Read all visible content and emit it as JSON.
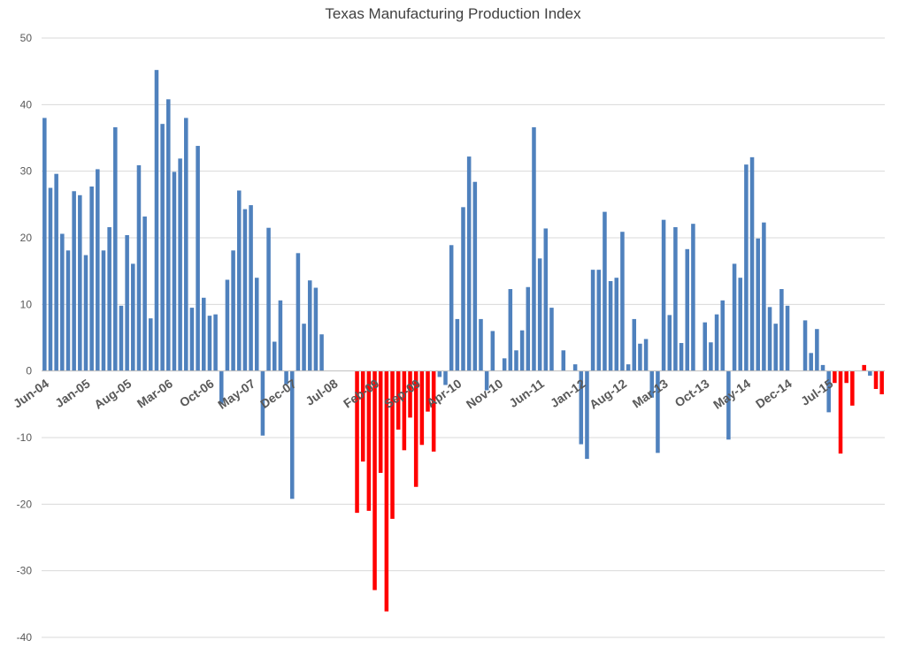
{
  "chart_data": {
    "type": "bar",
    "title": "Texas Manufacturing Production Index",
    "xlabel": "",
    "ylabel": "",
    "ylim": [
      -40,
      50
    ],
    "yticks": [
      50,
      40,
      30,
      20,
      10,
      0,
      -10,
      -20,
      -30,
      -40
    ],
    "grid": true,
    "legend": "none",
    "colors": {
      "default": "#4f81bd",
      "highlight": "#ff0000",
      "gridline": "#d9d9d9",
      "axis": "#bfbfbf"
    },
    "x_tick_labels": [
      "Jun-04",
      "Jan-05",
      "Aug-05",
      "Mar-06",
      "Oct-06",
      "May-07",
      "Dec-07",
      "Jul-08",
      "Feb-09",
      "Sep-09",
      "Apr-10",
      "Nov-10",
      "Jun-11",
      "Jan-12",
      "Aug-12",
      "Mar-13",
      "Oct-13",
      "May-14",
      "Dec-14",
      "Jul-15"
    ],
    "x_tick_every": 7,
    "values": [
      38,
      27.5,
      29.6,
      20.6,
      18.1,
      27.0,
      26.4,
      17.4,
      27.7,
      30.3,
      18.1,
      21.6,
      36.6,
      9.8,
      20.4,
      16.1,
      30.9,
      23.2,
      7.9,
      45.2,
      37.1,
      40.8,
      29.9,
      31.9,
      38.0,
      9.5,
      33.8,
      11.0,
      8.3,
      8.5,
      -5.0,
      13.7,
      18.1,
      27.1,
      24.3,
      24.9,
      14.0,
      -9.7,
      21.5,
      4.4,
      10.6,
      -2.0,
      -19.2,
      17.7,
      7.1,
      13.6,
      12.5,
      5.5,
      0,
      0,
      0,
      0,
      0,
      -21.3,
      -13.6,
      -21.0,
      -32.9,
      -15.3,
      -36.1,
      -22.2,
      -8.8,
      -11.9,
      -7.0,
      -17.4,
      -11.1,
      -6.1,
      -12.1,
      -0.9,
      -2.1,
      18.9,
      7.8,
      24.6,
      32.2,
      28.4,
      7.8,
      -2.9,
      6.0,
      0,
      1.9,
      12.3,
      3.1,
      6.1,
      12.6,
      36.6,
      16.9,
      21.4,
      9.5,
      0,
      3.1,
      0,
      1.0,
      -11.0,
      -13.2,
      15.2,
      15.2,
      23.9,
      13.5,
      14.0,
      20.9,
      1.0,
      7.8,
      4.1,
      4.8,
      -4.0,
      -12.3,
      22.7,
      8.4,
      21.6,
      4.2,
      18.3,
      22.1,
      0,
      7.3,
      4.3,
      8.5,
      10.6,
      -10.3,
      16.1,
      14.0,
      31.0,
      32.1,
      19.9,
      22.3,
      9.6,
      7.1,
      12.3,
      9.8,
      0,
      0,
      7.6,
      2.7,
      6.3,
      0.9,
      -6.2,
      -1.8,
      -12.4,
      -1.8,
      -5.2,
      0,
      0.9,
      -0.7,
      -2.7,
      -3.5
    ],
    "highlight_ranges": [
      [
        53,
        66
      ],
      [
        134,
        137
      ],
      [
        139,
        139
      ],
      [
        141,
        142
      ]
    ]
  }
}
